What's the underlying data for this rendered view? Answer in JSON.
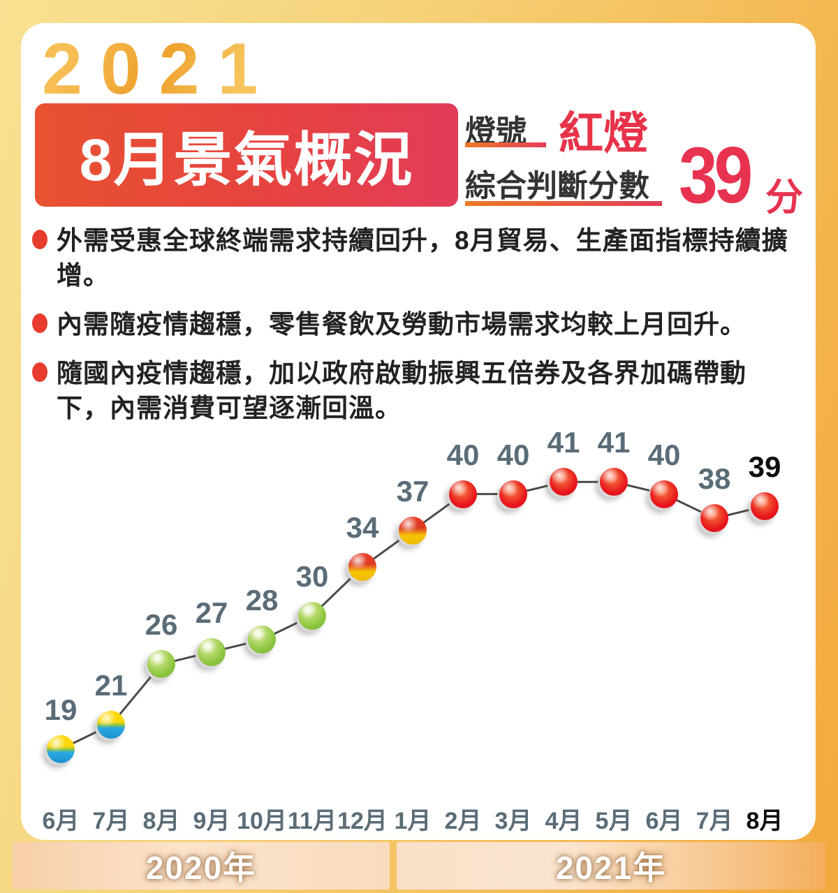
{
  "header": {
    "year": "2021",
    "banner_title": "8月景氣概況",
    "signal_label": "燈號",
    "signal_value": "紅燈",
    "score_label": "綜合判斷分數",
    "score_value": "39",
    "score_unit": "分"
  },
  "bullets": [
    "外需受惠全球終端需求持續回升，8月貿易、生產面指標持續擴增。",
    "內需隨疫情趨穩，零售餐飲及勞動市場需求均較上月回升。",
    "隨國內疫情趨穩，加以政府啟動振興五倍券及各界加碼帶動下，內需消費可望逐漸回溫。"
  ],
  "chart_data": {
    "type": "line",
    "title": "",
    "x": [
      "6月",
      "7月",
      "8月",
      "9月",
      "10月",
      "11月",
      "12月",
      "1月",
      "2月",
      "3月",
      "4月",
      "5月",
      "6月",
      "7月",
      "8月"
    ],
    "values": [
      19,
      21,
      26,
      27,
      28,
      30,
      34,
      37,
      40,
      40,
      41,
      41,
      40,
      38,
      39
    ],
    "point_signals": [
      "yellow-blue",
      "yellow-blue",
      "green",
      "green",
      "green",
      "green",
      "yellow-red",
      "yellow-red",
      "red",
      "red",
      "red",
      "red",
      "red",
      "red",
      "red"
    ],
    "ylim": [
      17,
      43
    ],
    "grid": false,
    "legend": false,
    "emphasize_last_point": true,
    "year_bands": [
      {
        "label": "2020年",
        "from": "6月",
        "to": "12月"
      },
      {
        "label": "2021年",
        "from": "1月",
        "to": "8月"
      }
    ]
  },
  "colors": {
    "frame_gradient": [
      "#F8E192",
      "#F3A93B"
    ],
    "banner_gradient": [
      "#E85230",
      "#E23C59"
    ],
    "accent_red": "#E73350",
    "underline_gradient": [
      "#EF7A25",
      "#E23C59"
    ],
    "value_label": "#5A6C77",
    "value_label_last": "#0E0E0E",
    "signal_red": "#E8141C",
    "signal_green": "#8DC63F",
    "signal_yellow": "#FFD705",
    "signal_blue": "#2BA9E0",
    "line_color": "#4A4A46"
  }
}
